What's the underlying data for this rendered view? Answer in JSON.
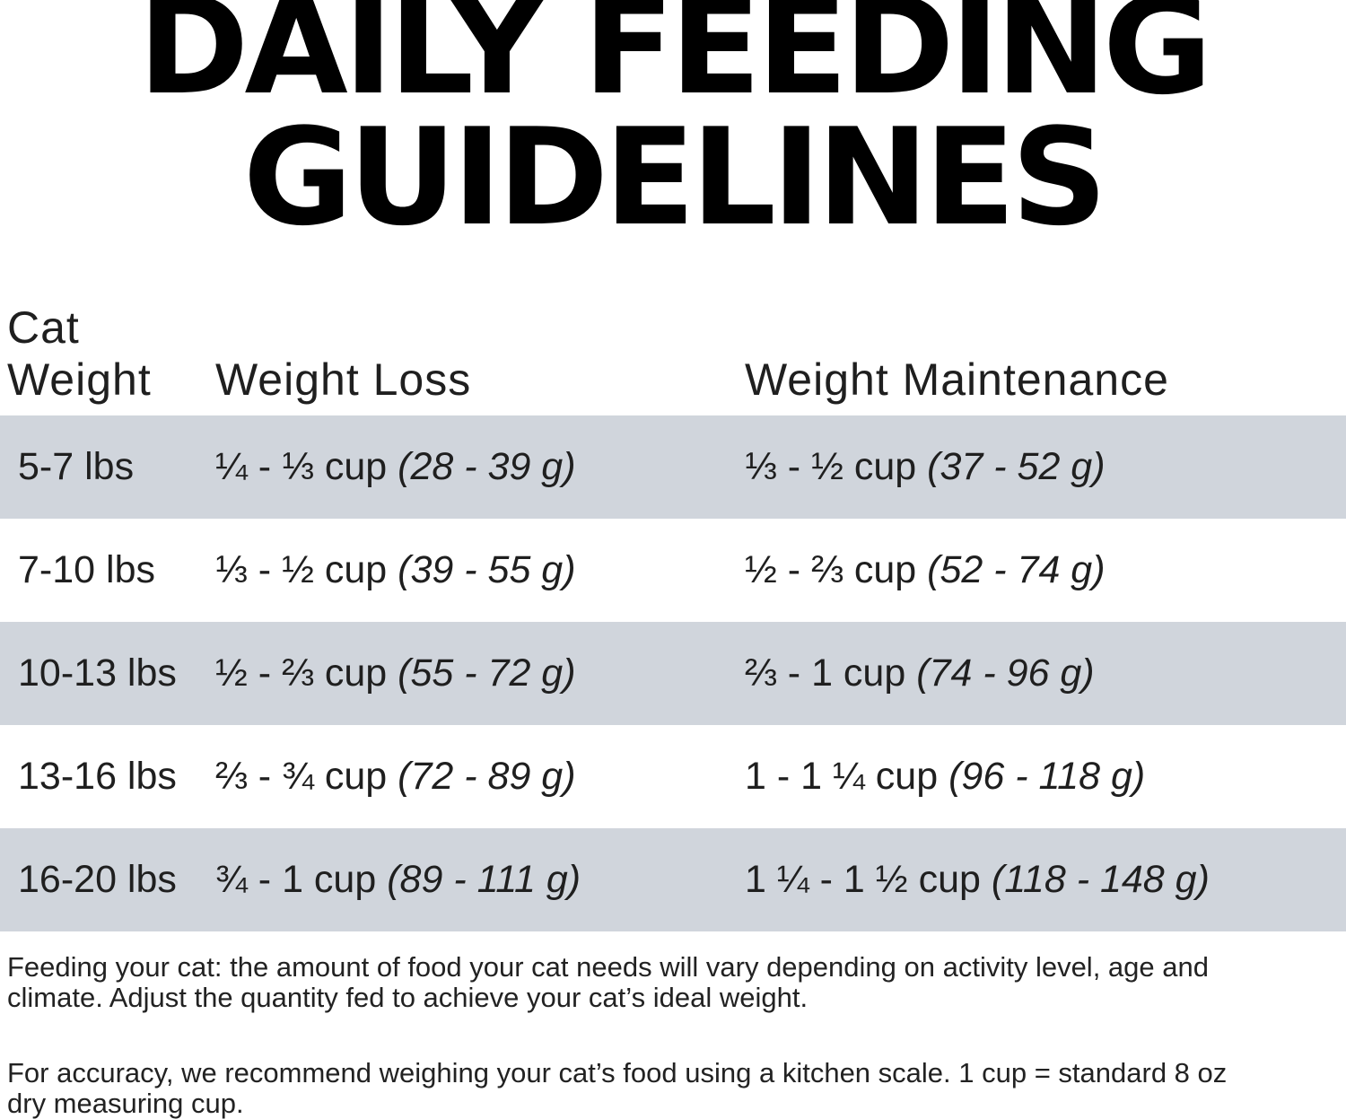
{
  "title": {
    "line1": "DAILY FEEDING",
    "line2": "GUIDELINES"
  },
  "table": {
    "header": {
      "col1_line1": "Cat",
      "col1_line2": "Weight",
      "col2": "Weight Loss",
      "col3": "Weight Maintenance"
    },
    "rows": [
      {
        "weight": "5-7 lbs",
        "loss_cups": "¼ - ⅓ cup",
        "loss_grams": "(28 - 39 g)",
        "maint_cups": "⅓ - ½ cup",
        "maint_grams": "(37 - 52 g)"
      },
      {
        "weight": "7-10 lbs",
        "loss_cups": "⅓ - ½ cup",
        "loss_grams": "(39 - 55 g)",
        "maint_cups": "½ - ⅔ cup",
        "maint_grams": "(52 - 74 g)"
      },
      {
        "weight": "10-13 lbs",
        "loss_cups": "½ - ⅔ cup",
        "loss_grams": "(55 - 72 g)",
        "maint_cups": "⅔ - 1 cup",
        "maint_grams": "(74 - 96 g)"
      },
      {
        "weight": "13-16 lbs",
        "loss_cups": "⅔ - ¾ cup",
        "loss_grams": "(72 - 89 g)",
        "maint_cups": "1 - 1 ¼ cup",
        "maint_grams": "(96 - 118 g)"
      },
      {
        "weight": "16-20 lbs",
        "loss_cups": "¾ - 1 cup",
        "loss_grams": "(89 - 111 g)",
        "maint_cups": "1 ¼ - 1 ½ cup",
        "maint_grams": "(118 - 148 g)"
      }
    ]
  },
  "footnotes": [
    {
      "lines": [
        "Feeding your cat: the amount of food your cat needs will vary depending on activity level, age and",
        "climate. Adjust the quantity fed to achieve your cat’s ideal weight."
      ]
    },
    {
      "lines": [
        "For accuracy, we recommend weighing your cat’s food using a kitchen scale. 1 cup = standard 8 oz",
        "dry measuring cup."
      ]
    }
  ],
  "colors": {
    "row_shaded": "#d0d5dc",
    "text": "#1f1f1f",
    "title": "#000000",
    "background": "#ffffff"
  }
}
